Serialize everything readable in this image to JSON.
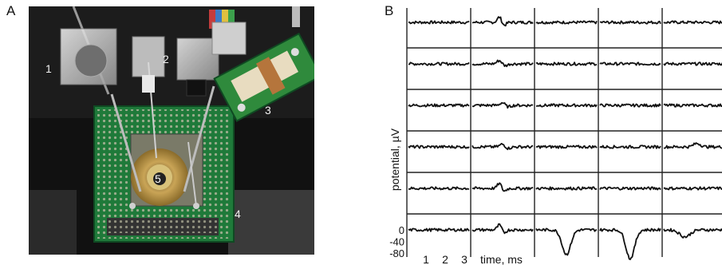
{
  "figure": {
    "panel_a": {
      "letter": "A",
      "callouts": [
        "1",
        "2",
        "3",
        "4",
        "5"
      ]
    },
    "panel_b": {
      "letter": "B"
    }
  },
  "chart_data": {
    "type": "line",
    "grid": "6 rows x 5 columns of traces",
    "xlabel": "time, ms",
    "ylabel": "potential, µV",
    "xticks": [
      "1",
      "2",
      "3"
    ],
    "yticks": [
      "0",
      "-40",
      "-80"
    ],
    "ylim": [
      -80,
      20
    ],
    "xlim": [
      0,
      3.5
    ],
    "trace_color": "#111111",
    "cells": [
      [
        {
          "spike": null
        },
        {
          "spike": {
            "t": 0.45,
            "amp": 16,
            "w": 0.05,
            "shape": "biphasic"
          }
        },
        {
          "spike": null
        },
        {
          "spike": null
        },
        {
          "spike": null
        }
      ],
      [
        {
          "spike": null
        },
        {
          "spike": {
            "t": 0.45,
            "amp": 10,
            "w": 0.06,
            "shape": "biphasic"
          }
        },
        {
          "spike": null
        },
        {
          "spike": null
        },
        {
          "spike": null
        }
      ],
      [
        {
          "spike": null
        },
        {
          "spike": {
            "t": 0.5,
            "amp": 8,
            "w": 0.06,
            "shape": "biphasic"
          }
        },
        {
          "spike": null
        },
        {
          "spike": null
        },
        {
          "spike": null
        }
      ],
      [
        {
          "spike": null
        },
        {
          "spike": {
            "t": 0.5,
            "amp": 8,
            "w": 0.06,
            "shape": "biphasic"
          }
        },
        {
          "spike": null
        },
        {
          "spike": null
        },
        {
          "spike": {
            "t": 0.55,
            "amp": 10,
            "w": 0.08,
            "shape": "up"
          }
        }
      ],
      [
        {
          "spike": null
        },
        {
          "spike": {
            "t": 0.45,
            "amp": 15,
            "w": 0.05,
            "shape": "biphasic"
          }
        },
        {
          "spike": null
        },
        {
          "spike": null
        },
        {
          "spike": null
        }
      ],
      [
        {
          "spike": null
        },
        {
          "spike": {
            "t": 0.45,
            "amp": 15,
            "w": 0.05,
            "shape": "biphasic"
          }
        },
        {
          "spike": {
            "t": 0.5,
            "amp": -70,
            "w": 0.1,
            "shape": "down"
          }
        },
        {
          "spike": {
            "t": 0.5,
            "amp": -82,
            "w": 0.1,
            "shape": "down"
          }
        },
        {
          "spike": {
            "t": 0.35,
            "amp": -20,
            "w": 0.12,
            "shape": "down"
          }
        }
      ]
    ]
  }
}
